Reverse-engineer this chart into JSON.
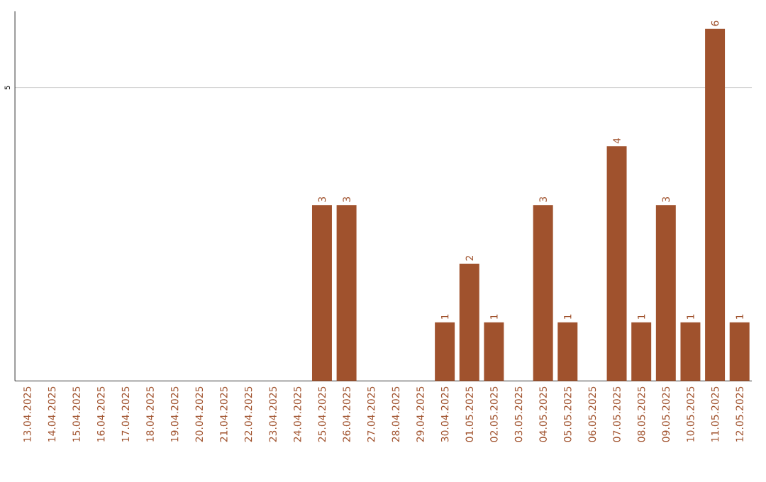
{
  "chart_data": {
    "type": "bar",
    "categories": [
      "13.04.2025",
      "14.04.2025",
      "15.04.2025",
      "16.04.2025",
      "17.04.2025",
      "18.04.2025",
      "19.04.2025",
      "20.04.2025",
      "21.04.2025",
      "22.04.2025",
      "23.04.2025",
      "24.04.2025",
      "25.04.2025",
      "26.04.2025",
      "27.04.2025",
      "28.04.2025",
      "29.04.2025",
      "30.04.2025",
      "01.05.2025",
      "02.05.2025",
      "03.05.2025",
      "04.05.2025",
      "05.05.2025",
      "06.05.2025",
      "07.05.2025",
      "08.05.2025",
      "09.05.2025",
      "10.05.2025",
      "11.05.2025",
      "12.05.2025"
    ],
    "values": [
      null,
      null,
      null,
      null,
      null,
      null,
      null,
      null,
      null,
      null,
      null,
      null,
      3,
      3,
      null,
      null,
      null,
      1,
      2,
      1,
      null,
      3,
      1,
      null,
      4,
      1,
      3,
      1,
      6,
      1
    ],
    "value_labels": [
      null,
      null,
      null,
      null,
      null,
      null,
      null,
      null,
      null,
      null,
      null,
      null,
      "3",
      "3",
      null,
      null,
      null,
      "1",
      "2",
      "1",
      null,
      "3",
      "1",
      null,
      "4",
      "1",
      "3",
      "1",
      "6",
      "1"
    ],
    "color": "#a0522d",
    "ylim": [
      0,
      6.3
    ],
    "yticks": [
      5
    ],
    "grid": "y"
  }
}
